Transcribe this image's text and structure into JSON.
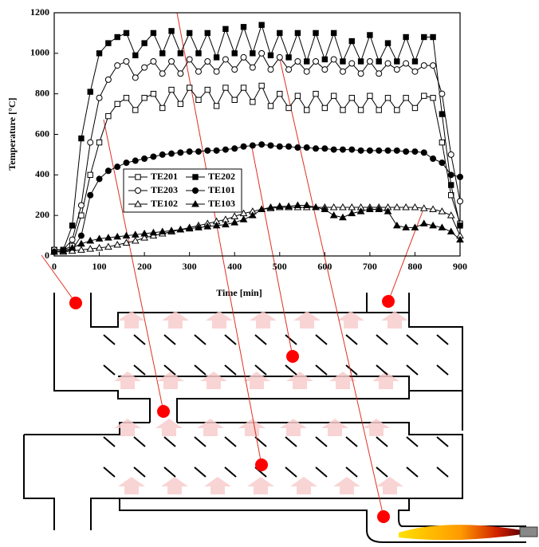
{
  "chart_data": {
    "type": "line",
    "x_label": "Time [min]",
    "y_label": "Temperature [°C]",
    "x": [
      0,
      20,
      40,
      60,
      80,
      100,
      120,
      140,
      160,
      180,
      200,
      220,
      240,
      260,
      280,
      300,
      320,
      340,
      360,
      380,
      400,
      420,
      440,
      460,
      480,
      500,
      520,
      540,
      560,
      580,
      600,
      620,
      640,
      660,
      680,
      700,
      720,
      740,
      760,
      780,
      800,
      820,
      840,
      860,
      880,
      900
    ],
    "xlim": [
      0,
      900
    ],
    "xticks": [
      0,
      100,
      200,
      300,
      400,
      500,
      600,
      700,
      800,
      900
    ],
    "ylim": [
      0,
      1200
    ],
    "yticks": [
      0,
      200,
      400,
      600,
      800,
      1000,
      1200
    ],
    "series": [
      {
        "name": "TE201",
        "color": "#000000",
        "marker": "square",
        "filled": false,
        "values": [
          30,
          30,
          50,
          200,
          400,
          560,
          690,
          750,
          780,
          720,
          780,
          800,
          730,
          820,
          750,
          830,
          770,
          820,
          740,
          830,
          770,
          830,
          760,
          840,
          740,
          800,
          730,
          790,
          720,
          800,
          730,
          790,
          720,
          780,
          720,
          790,
          720,
          780,
          720,
          780,
          730,
          790,
          780,
          560,
          300,
          160
        ]
      },
      {
        "name": "TE202",
        "color": "#000000",
        "marker": "square",
        "filled": true,
        "values": [
          30,
          30,
          150,
          580,
          810,
          1000,
          1050,
          1080,
          1100,
          990,
          1050,
          1100,
          1000,
          1110,
          1000,
          1100,
          1000,
          1100,
          980,
          1120,
          1000,
          1130,
          1000,
          1140,
          990,
          1100,
          980,
          1100,
          960,
          1100,
          970,
          1100,
          960,
          1060,
          960,
          1090,
          960,
          1050,
          960,
          1080,
          960,
          1080,
          1080,
          700,
          350,
          150
        ]
      },
      {
        "name": "TE203",
        "color": "#000000",
        "marker": "circle",
        "filled": false,
        "values": [
          30,
          30,
          80,
          250,
          560,
          780,
          870,
          940,
          960,
          880,
          930,
          960,
          900,
          960,
          900,
          970,
          910,
          960,
          910,
          970,
          920,
          980,
          930,
          1000,
          920,
          980,
          920,
          960,
          910,
          960,
          920,
          970,
          910,
          950,
          900,
          960,
          900,
          950,
          920,
          950,
          910,
          940,
          940,
          800,
          500,
          270
        ]
      },
      {
        "name": "TE101",
        "color": "#000000",
        "marker": "circle",
        "filled": true,
        "values": [
          20,
          25,
          30,
          100,
          300,
          380,
          420,
          440,
          460,
          470,
          480,
          490,
          500,
          505,
          510,
          515,
          515,
          520,
          520,
          525,
          530,
          540,
          545,
          550,
          545,
          540,
          540,
          535,
          535,
          530,
          530,
          525,
          525,
          525,
          520,
          520,
          520,
          520,
          520,
          515,
          515,
          510,
          480,
          460,
          400,
          390
        ]
      },
      {
        "name": "TE102",
        "color": "#000000",
        "marker": "triangle",
        "filled": false,
        "values": [
          20,
          20,
          25,
          30,
          35,
          40,
          45,
          55,
          65,
          75,
          90,
          100,
          110,
          120,
          130,
          140,
          150,
          160,
          170,
          180,
          195,
          210,
          220,
          230,
          235,
          240,
          240,
          240,
          240,
          240,
          240,
          240,
          240,
          240,
          240,
          240,
          240,
          240,
          240,
          240,
          240,
          235,
          230,
          220,
          200,
          100
        ]
      },
      {
        "name": "TE103",
        "color": "#000000",
        "marker": "triangle",
        "filled": true,
        "values": [
          20,
          25,
          40,
          60,
          75,
          85,
          90,
          95,
          100,
          105,
          110,
          115,
          120,
          125,
          130,
          135,
          140,
          145,
          150,
          155,
          165,
          180,
          200,
          230,
          240,
          245,
          245,
          250,
          250,
          240,
          230,
          200,
          190,
          210,
          220,
          230,
          230,
          220,
          150,
          140,
          140,
          160,
          150,
          140,
          120,
          80
        ]
      }
    ],
    "legend": "center-left"
  }
}
